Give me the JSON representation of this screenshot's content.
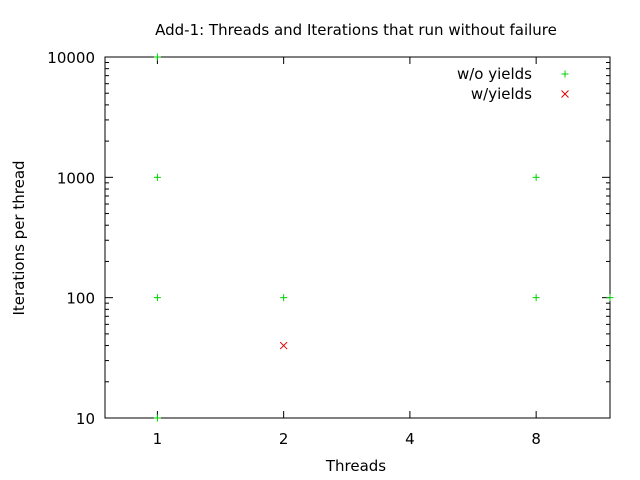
{
  "chart_data": {
    "type": "scatter",
    "title": "Add-1: Threads and Iterations that run without failure",
    "xlabel": "Threads",
    "ylabel": "Iterations per thread",
    "x_scale": "log2",
    "y_scale": "log10",
    "xlim": [
      0.75,
      12
    ],
    "ylim": [
      10,
      10000
    ],
    "x_ticks": [
      {
        "value": 1,
        "label": "1"
      },
      {
        "value": 2,
        "label": "2"
      },
      {
        "value": 4,
        "label": "4"
      },
      {
        "value": 8,
        "label": "8"
      }
    ],
    "y_ticks": [
      {
        "value": 10,
        "label": "10"
      },
      {
        "value": 100,
        "label": "100"
      },
      {
        "value": 1000,
        "label": "1000"
      },
      {
        "value": 10000,
        "label": "10000"
      }
    ],
    "grid": false,
    "legend_position": "top-right",
    "series": [
      {
        "name": "w/o yields",
        "color": "#00d000",
        "marker": "plus",
        "points": [
          {
            "x": 1,
            "y": 10
          },
          {
            "x": 1,
            "y": 100
          },
          {
            "x": 1,
            "y": 1000
          },
          {
            "x": 1,
            "y": 10000
          },
          {
            "x": 2,
            "y": 100
          },
          {
            "x": 8,
            "y": 100
          },
          {
            "x": 8,
            "y": 1000
          },
          {
            "x": 12,
            "y": 100
          }
        ]
      },
      {
        "name": "w/yields",
        "color": "#e00000",
        "marker": "cross",
        "points": [
          {
            "x": 2,
            "y": 40
          }
        ]
      }
    ]
  }
}
